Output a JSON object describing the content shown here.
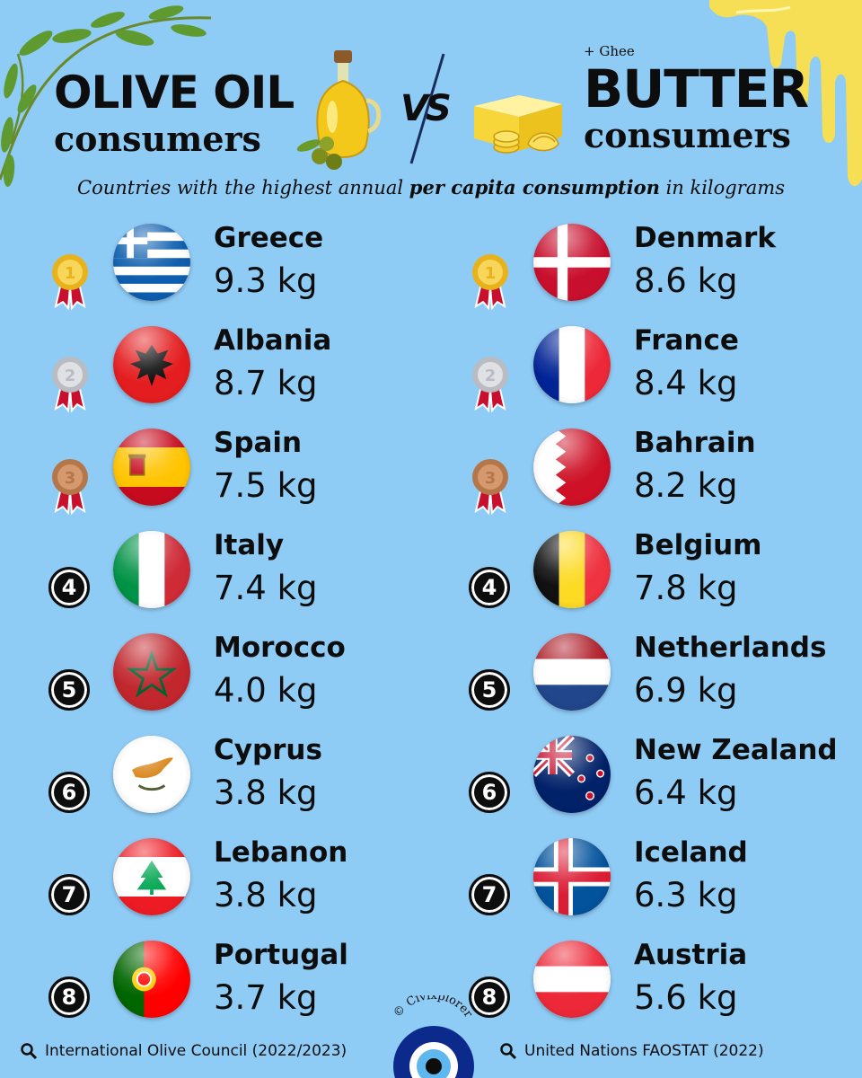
{
  "header": {
    "left_title_line1": "OLIVE OIL",
    "left_title_line2": "consumers",
    "vs": "VS",
    "right_note": "+ Ghee",
    "right_title_line1": "BUTTER",
    "right_title_line2": "consumers",
    "subtitle_pre": "Countries with the highest annual ",
    "subtitle_bold": "per capita consumption",
    "subtitle_post": " in kilograms"
  },
  "olive_oil": [
    {
      "rank": "1",
      "country": "Greece",
      "value": "9.3 kg",
      "flag": "greece"
    },
    {
      "rank": "2",
      "country": "Albania",
      "value": "8.7 kg",
      "flag": "albania"
    },
    {
      "rank": "3",
      "country": "Spain",
      "value": "7.5 kg",
      "flag": "spain"
    },
    {
      "rank": "4",
      "country": "Italy",
      "value": "7.4 kg",
      "flag": "italy"
    },
    {
      "rank": "5",
      "country": "Morocco",
      "value": "4.0 kg",
      "flag": "morocco"
    },
    {
      "rank": "6",
      "country": "Cyprus",
      "value": "3.8 kg",
      "flag": "cyprus"
    },
    {
      "rank": "7",
      "country": "Lebanon",
      "value": "3.8 kg",
      "flag": "lebanon"
    },
    {
      "rank": "8",
      "country": "Portugal",
      "value": "3.7 kg",
      "flag": "portugal"
    }
  ],
  "butter": [
    {
      "rank": "1",
      "country": "Denmark",
      "value": "8.6 kg",
      "flag": "denmark"
    },
    {
      "rank": "2",
      "country": "France",
      "value": "8.4 kg",
      "flag": "france"
    },
    {
      "rank": "3",
      "country": "Bahrain",
      "value": "8.2 kg",
      "flag": "bahrain"
    },
    {
      "rank": "4",
      "country": "Belgium",
      "value": "7.8 kg",
      "flag": "belgium"
    },
    {
      "rank": "5",
      "country": "Netherlands",
      "value": "6.9 kg",
      "flag": "netherlands"
    },
    {
      "rank": "6",
      "country": "New Zealand",
      "value": "6.4 kg",
      "flag": "new-zealand"
    },
    {
      "rank": "7",
      "country": "Iceland",
      "value": "6.3 kg",
      "flag": "iceland"
    },
    {
      "rank": "8",
      "country": "Austria",
      "value": "5.6 kg",
      "flag": "austria"
    }
  ],
  "sources": {
    "left": "International Olive Council (2022/2023)",
    "right": "United Nations FAOSTAT (2022)"
  },
  "brand": "© Civixplorer",
  "colors": {
    "background": "#8ecbf5",
    "gold": "#e8b21c",
    "silver": "#b9bcc2",
    "bronze": "#b5764a",
    "evil_eye_blue": "#0b2a8c"
  }
}
